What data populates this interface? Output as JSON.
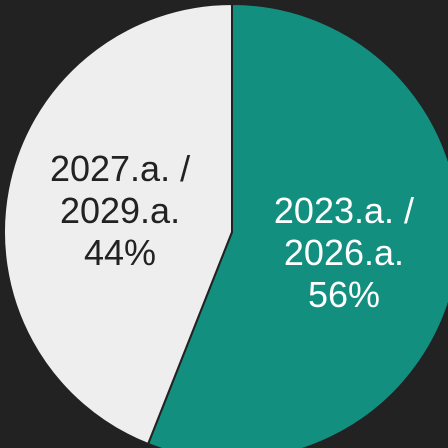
{
  "chart_data": {
    "type": "pie",
    "categories": [
      "2023.a. / 2026.a.",
      "2027.a. / 2029.a."
    ],
    "values": [
      56,
      44
    ],
    "value_labels": [
      "56%",
      "44%"
    ],
    "colors": [
      "#138f80",
      "#eeeeee"
    ]
  }
}
